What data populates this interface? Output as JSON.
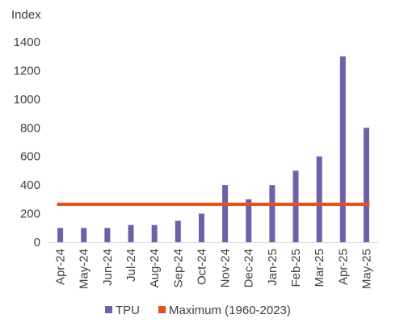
{
  "chart_data": {
    "type": "bar",
    "title": "",
    "ylabel": "Index",
    "xlabel": "",
    "categories": [
      "Apr-24",
      "May-24",
      "Jun-24",
      "Jul-24",
      "Aug-24",
      "Sep-24",
      "Oct-24",
      "Nov-24",
      "Dec-24",
      "Jan-25",
      "Feb-25",
      "Mar-25",
      "Apr-25",
      "May-25"
    ],
    "series": [
      {
        "name": "TPU",
        "color": "#7060a8",
        "values": [
          100,
          100,
          100,
          120,
          120,
          150,
          200,
          400,
          300,
          400,
          500,
          600,
          1300,
          800
        ]
      }
    ],
    "reference_line": {
      "name": "Maximum (1960-2023)",
      "color": "#e0531e",
      "value": 265
    },
    "ylim": [
      0,
      1400
    ],
    "yticks": [
      "0",
      "200",
      "400",
      "600",
      "800",
      "1000",
      "1200",
      "1400"
    ],
    "grid": false,
    "legend_position": "bottom"
  }
}
